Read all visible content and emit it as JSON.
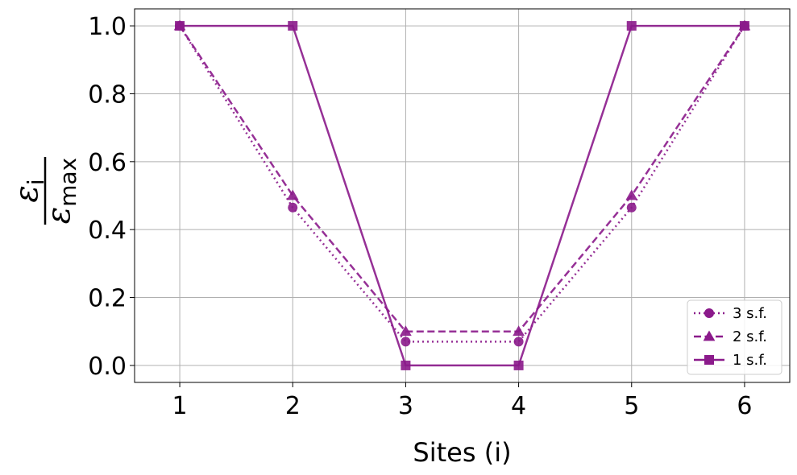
{
  "chart_data": {
    "type": "line",
    "title": "",
    "xlabel": "Sites (i)",
    "ylabel": {
      "numerator": "ε",
      "numerator_sub": "i",
      "denominator": "ε",
      "denominator_sub": "max"
    },
    "x": [
      1,
      2,
      3,
      4,
      5,
      6
    ],
    "xlim": [
      0.6,
      6.4
    ],
    "ylim": [
      -0.05,
      1.05
    ],
    "xticks": [
      1,
      2,
      3,
      4,
      5,
      6
    ],
    "yticks": [
      0.0,
      0.2,
      0.4,
      0.6,
      0.8,
      1.0
    ],
    "xtick_labels": [
      "1",
      "2",
      "3",
      "4",
      "5",
      "6"
    ],
    "ytick_labels": [
      "0.0",
      "0.2",
      "0.4",
      "0.6",
      "0.8",
      "1.0"
    ],
    "grid": true,
    "legend_position": "bottom-right",
    "series": [
      {
        "name": "3 s.f.",
        "values": [
          1.0,
          0.465,
          0.07,
          0.07,
          0.465,
          1.0
        ],
        "color": "#8b1a8b",
        "line_style": "dotted",
        "marker": "circle"
      },
      {
        "name": "2 s.f.",
        "values": [
          1.0,
          0.5,
          0.1,
          0.1,
          0.5,
          1.0
        ],
        "color": "#8b1a8b",
        "line_style": "dashed",
        "marker": "triangle"
      },
      {
        "name": "1 s.f.",
        "values": [
          1.0,
          1.0,
          0.0,
          0.0,
          1.0,
          1.0
        ],
        "color": "#8b1a8b",
        "line_style": "solid",
        "marker": "square"
      }
    ]
  }
}
